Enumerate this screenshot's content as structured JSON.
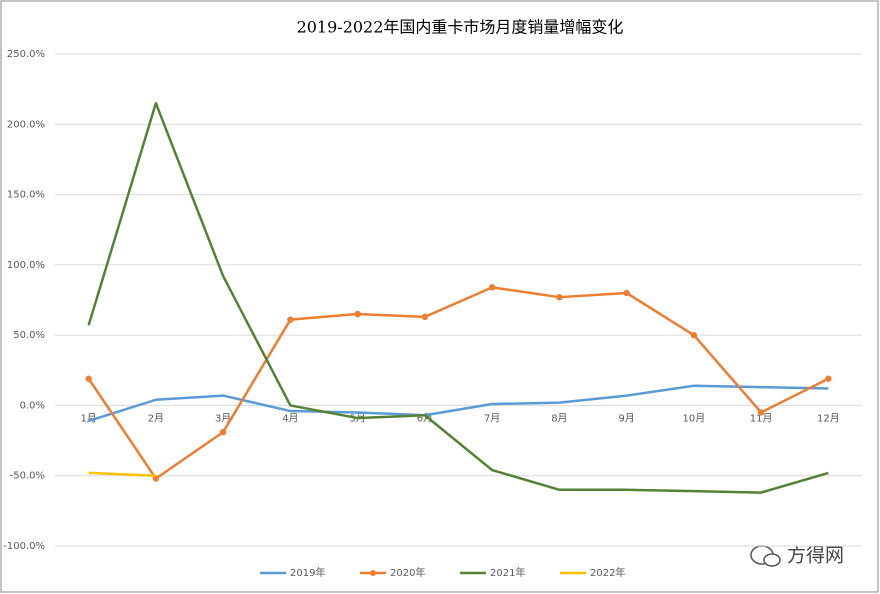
{
  "chart_data": {
    "type": "line",
    "title": "2019-2022年国内重卡市场月度销量增幅变化",
    "categories": [
      "1月",
      "2月",
      "3月",
      "4月",
      "5月",
      "6月",
      "7月",
      "8月",
      "9月",
      "10月",
      "11月",
      "12月"
    ],
    "series": [
      {
        "name": "2019年",
        "color": "#5b9bd5",
        "markers": false,
        "values": [
          -11,
          4,
          7,
          -4,
          -5,
          -7,
          1,
          2,
          7,
          14,
          13,
          12
        ]
      },
      {
        "name": "2020年",
        "color": "#ed7d31",
        "markers": true,
        "values": [
          19,
          -52,
          -19,
          61,
          65,
          63,
          84,
          77,
          80,
          50,
          -5,
          19
        ]
      },
      {
        "name": "2021年",
        "color": "#548235",
        "markers": false,
        "values": [
          57,
          215,
          92,
          0,
          -9,
          -7,
          -46,
          -60,
          -60,
          -61,
          -62,
          -48
        ]
      },
      {
        "name": "2022年",
        "color": "#ffc000",
        "markers": false,
        "values": [
          -48,
          -50,
          null,
          null,
          null,
          null,
          null,
          null,
          null,
          null,
          null,
          null
        ]
      }
    ],
    "ylim": [
      -100,
      250
    ],
    "yticks": [
      {
        "value": -100,
        "label": "-100.0%"
      },
      {
        "value": -50,
        "label": "-50.0%"
      },
      {
        "value": 0,
        "label": "0.0%"
      },
      {
        "value": 50,
        "label": "50.0%"
      },
      {
        "value": 100,
        "label": "100.0%"
      },
      {
        "value": 150,
        "label": "150.0%"
      },
      {
        "value": 200,
        "label": "200.0%"
      },
      {
        "value": 250,
        "label": "250.0%"
      }
    ],
    "grid": true,
    "legend": "bottom",
    "watermark": "方得网"
  }
}
